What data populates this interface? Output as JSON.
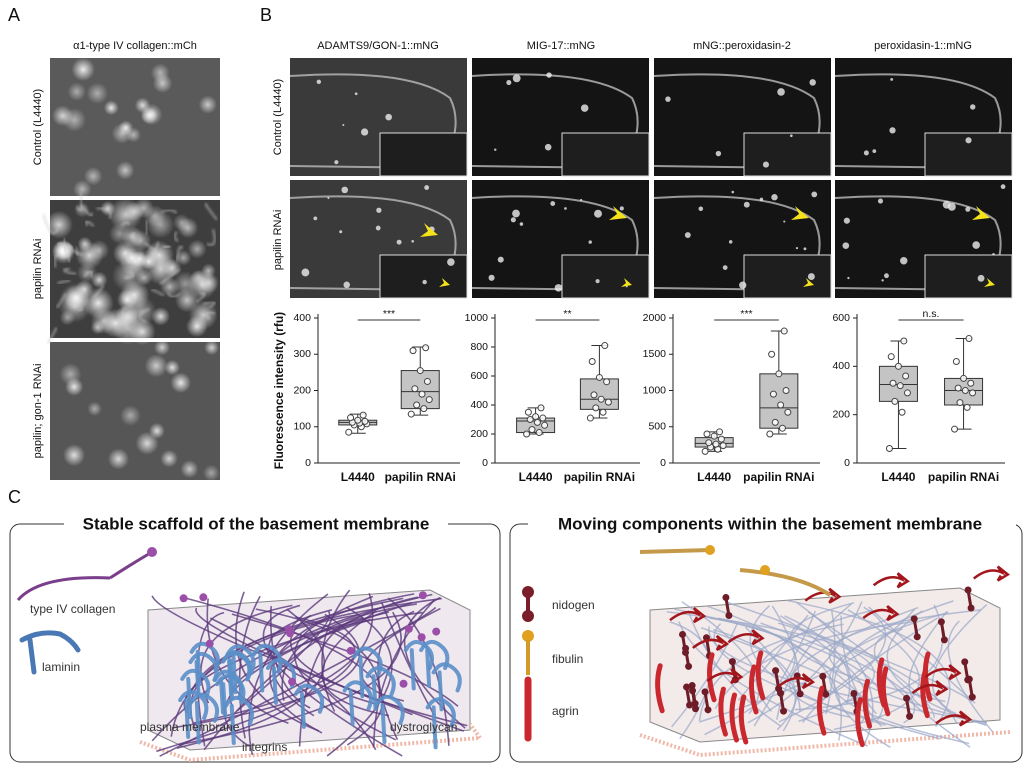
{
  "panel_a": {
    "label": "A",
    "title": "α1-type IV collagen::mCh",
    "rows": [
      "Control (L4440)",
      "papilin RNAi",
      "papilin; gon-1 RNAi"
    ]
  },
  "panel_b": {
    "label": "B",
    "columns": [
      "ADAMTS9/GON-1::mNG",
      "MIG-17::mNG",
      "mNG::peroxidasin-2",
      "peroxidasin-1::mNG"
    ],
    "rows": [
      "Control (L4440)",
      "papilin RNAi"
    ]
  },
  "chart_data": [
    {
      "type": "box",
      "y_label": "Fluorescence intensity (rfu)",
      "categories": [
        "L4440",
        "papilin RNAi"
      ],
      "color": "#c4c4c4",
      "ylim": [
        0,
        400
      ],
      "yticks": [
        0,
        100,
        200,
        300,
        400
      ],
      "significance": "***",
      "boxes": [
        {
          "min": 82,
          "q1": 105,
          "median": 112,
          "q3": 118,
          "max": 135,
          "points": [
            85,
            100,
            105,
            108,
            110,
            112,
            115,
            118,
            125,
            132
          ]
        },
        {
          "min": 132,
          "q1": 150,
          "median": 197,
          "q3": 255,
          "max": 320,
          "points": [
            135,
            150,
            160,
            175,
            190,
            205,
            225,
            255,
            310,
            318
          ]
        }
      ]
    },
    {
      "type": "box",
      "categories": [
        "L4440",
        "papilin RNAi"
      ],
      "color": "#c4c4c4",
      "ylim": [
        0,
        1000
      ],
      "yticks": [
        0,
        200,
        400,
        600,
        800,
        1000
      ],
      "significance": "**",
      "boxes": [
        {
          "min": 200,
          "q1": 210,
          "median": 290,
          "q3": 310,
          "max": 380,
          "points": [
            200,
            210,
            230,
            260,
            280,
            300,
            310,
            320,
            350,
            380
          ]
        },
        {
          "min": 310,
          "q1": 370,
          "median": 440,
          "q3": 580,
          "max": 810,
          "points": [
            310,
            350,
            380,
            420,
            440,
            470,
            560,
            590,
            700,
            810
          ]
        }
      ]
    },
    {
      "type": "box",
      "categories": [
        "L4440",
        "papilin RNAi"
      ],
      "color": "#c4c4c4",
      "ylim": [
        0,
        2000
      ],
      "yticks": [
        0,
        500,
        1000,
        1500,
        2000
      ],
      "significance": "***",
      "boxes": [
        {
          "min": 160,
          "q1": 220,
          "median": 270,
          "q3": 350,
          "max": 430,
          "points": [
            160,
            190,
            220,
            240,
            260,
            280,
            330,
            370,
            400,
            430
          ]
        },
        {
          "min": 400,
          "q1": 480,
          "median": 760,
          "q3": 1230,
          "max": 1820,
          "points": [
            400,
            480,
            560,
            700,
            800,
            950,
            1000,
            1230,
            1500,
            1820
          ]
        }
      ]
    },
    {
      "type": "box",
      "categories": [
        "L4440",
        "papilin RNAi"
      ],
      "color": "#c4c4c4",
      "ylim": [
        0,
        600
      ],
      "yticks": [
        0,
        200,
        400,
        600
      ],
      "significance": "n.s.",
      "boxes": [
        {
          "min": 60,
          "q1": 255,
          "median": 325,
          "q3": 400,
          "max": 505,
          "points": [
            60,
            210,
            255,
            290,
            320,
            330,
            360,
            400,
            440,
            505
          ]
        },
        {
          "min": 140,
          "q1": 240,
          "median": 300,
          "q3": 350,
          "max": 515,
          "points": [
            140,
            230,
            250,
            290,
            300,
            310,
            330,
            350,
            420,
            515
          ]
        }
      ]
    }
  ],
  "panel_c": {
    "label": "C",
    "left": {
      "title": "Stable scaffold of the basement membrane",
      "labels": [
        "type IV collagen",
        "laminin",
        "plasma membrane",
        "integrins",
        "dystroglycan"
      ]
    },
    "right": {
      "title": "Moving components within the basement membrane",
      "labels": [
        "nidogen",
        "fibulin",
        "agrin"
      ]
    }
  }
}
